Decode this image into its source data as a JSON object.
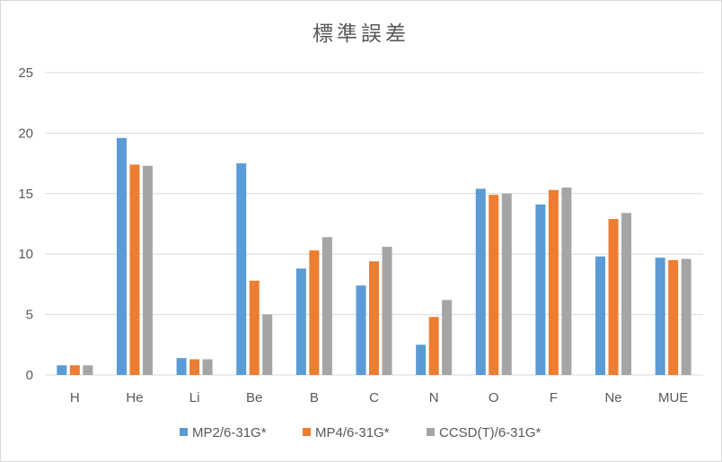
{
  "chart_data": {
    "type": "bar",
    "title": "標準誤差",
    "xlabel": "",
    "ylabel": "",
    "categories": [
      "H",
      "He",
      "Li",
      "Be",
      "B",
      "C",
      "N",
      "O",
      "F",
      "Ne",
      "MUE"
    ],
    "ylim": [
      0,
      25
    ],
    "yticks": [
      0,
      5,
      10,
      15,
      20,
      25
    ],
    "grid": "horizontal",
    "legend": "bottom",
    "series": [
      {
        "name": "MP2/6-31G*",
        "color": "#5b9bd5",
        "values": [
          0.8,
          19.6,
          1.4,
          17.5,
          8.8,
          7.4,
          2.5,
          15.4,
          14.1,
          9.8,
          9.7
        ]
      },
      {
        "name": "MP4/6-31G*",
        "color": "#ed7d31",
        "values": [
          0.8,
          17.4,
          1.3,
          7.8,
          10.3,
          9.4,
          4.8,
          14.9,
          15.3,
          12.9,
          9.5
        ]
      },
      {
        "name": "CCSD(T)/6-31G*",
        "color": "#a5a5a5",
        "values": [
          0.8,
          17.3,
          1.3,
          5.0,
          11.4,
          10.6,
          6.2,
          15.0,
          15.5,
          13.4,
          9.6
        ]
      }
    ]
  }
}
